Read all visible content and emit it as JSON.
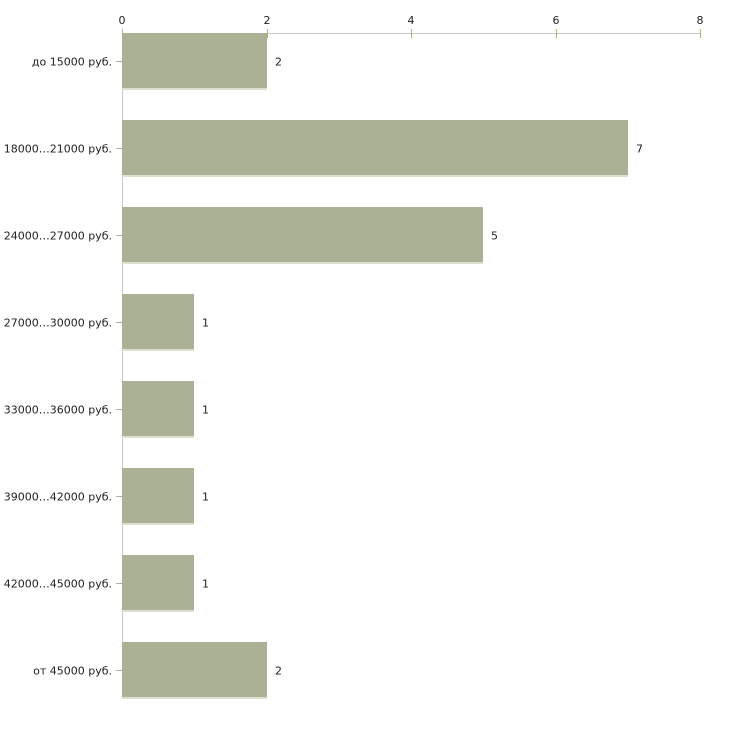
{
  "chart_data": {
    "type": "bar",
    "orientation": "horizontal",
    "title": "",
    "categories": [
      "до 15000 руб.",
      "18000…21000 руб.",
      "24000…27000 руб.",
      "27000…30000 руб.",
      "33000…36000 руб.",
      "39000…42000 руб.",
      "42000…45000 руб.",
      "от 45000 руб."
    ],
    "values": [
      2,
      7,
      5,
      1,
      1,
      1,
      1,
      2
    ],
    "x_axis": {
      "position": "top",
      "range": [
        0,
        8
      ],
      "ticks": [
        0,
        2,
        4,
        6,
        8
      ]
    },
    "grid": false,
    "legend": false,
    "colors": {
      "bar_fill": "#abb194",
      "bar_bottom_edge": "#dde0d0",
      "axis_line": "#c9c9c9",
      "x_tick_mark": "#b2b274",
      "category_tick_mark": "#adadad",
      "text": "#222222",
      "background": "#ffffff"
    }
  }
}
